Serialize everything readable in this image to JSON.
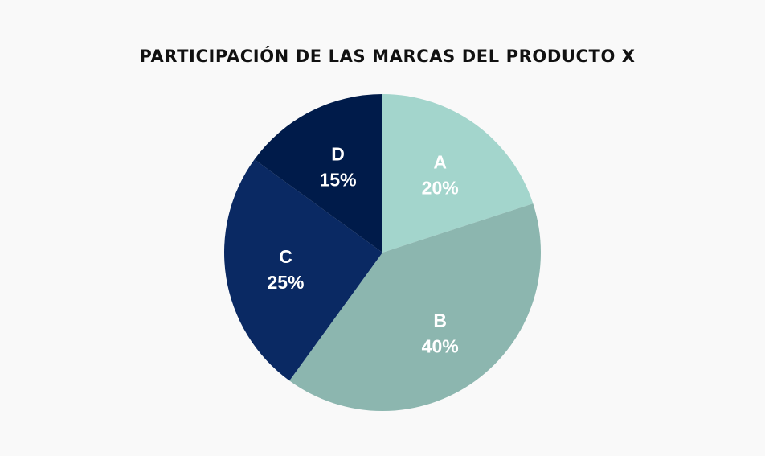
{
  "chart_data": {
    "type": "pie",
    "title": "PARTICIPACIÓN DE LAS MARCAS DEL PRODUCTO X",
    "slices": [
      {
        "label": "A",
        "value": 20,
        "display": "20%",
        "color": "#a3d5cc"
      },
      {
        "label": "B",
        "value": 40,
        "display": "40%",
        "color": "#8cb6af"
      },
      {
        "label": "C",
        "value": 25,
        "display": "25%",
        "color": "#0a2963"
      },
      {
        "label": "D",
        "value": 15,
        "display": "15%",
        "color": "#001b4a"
      }
    ],
    "start_angle": "top (12 o'clock)",
    "direction": "clockwise",
    "legend": "none"
  }
}
